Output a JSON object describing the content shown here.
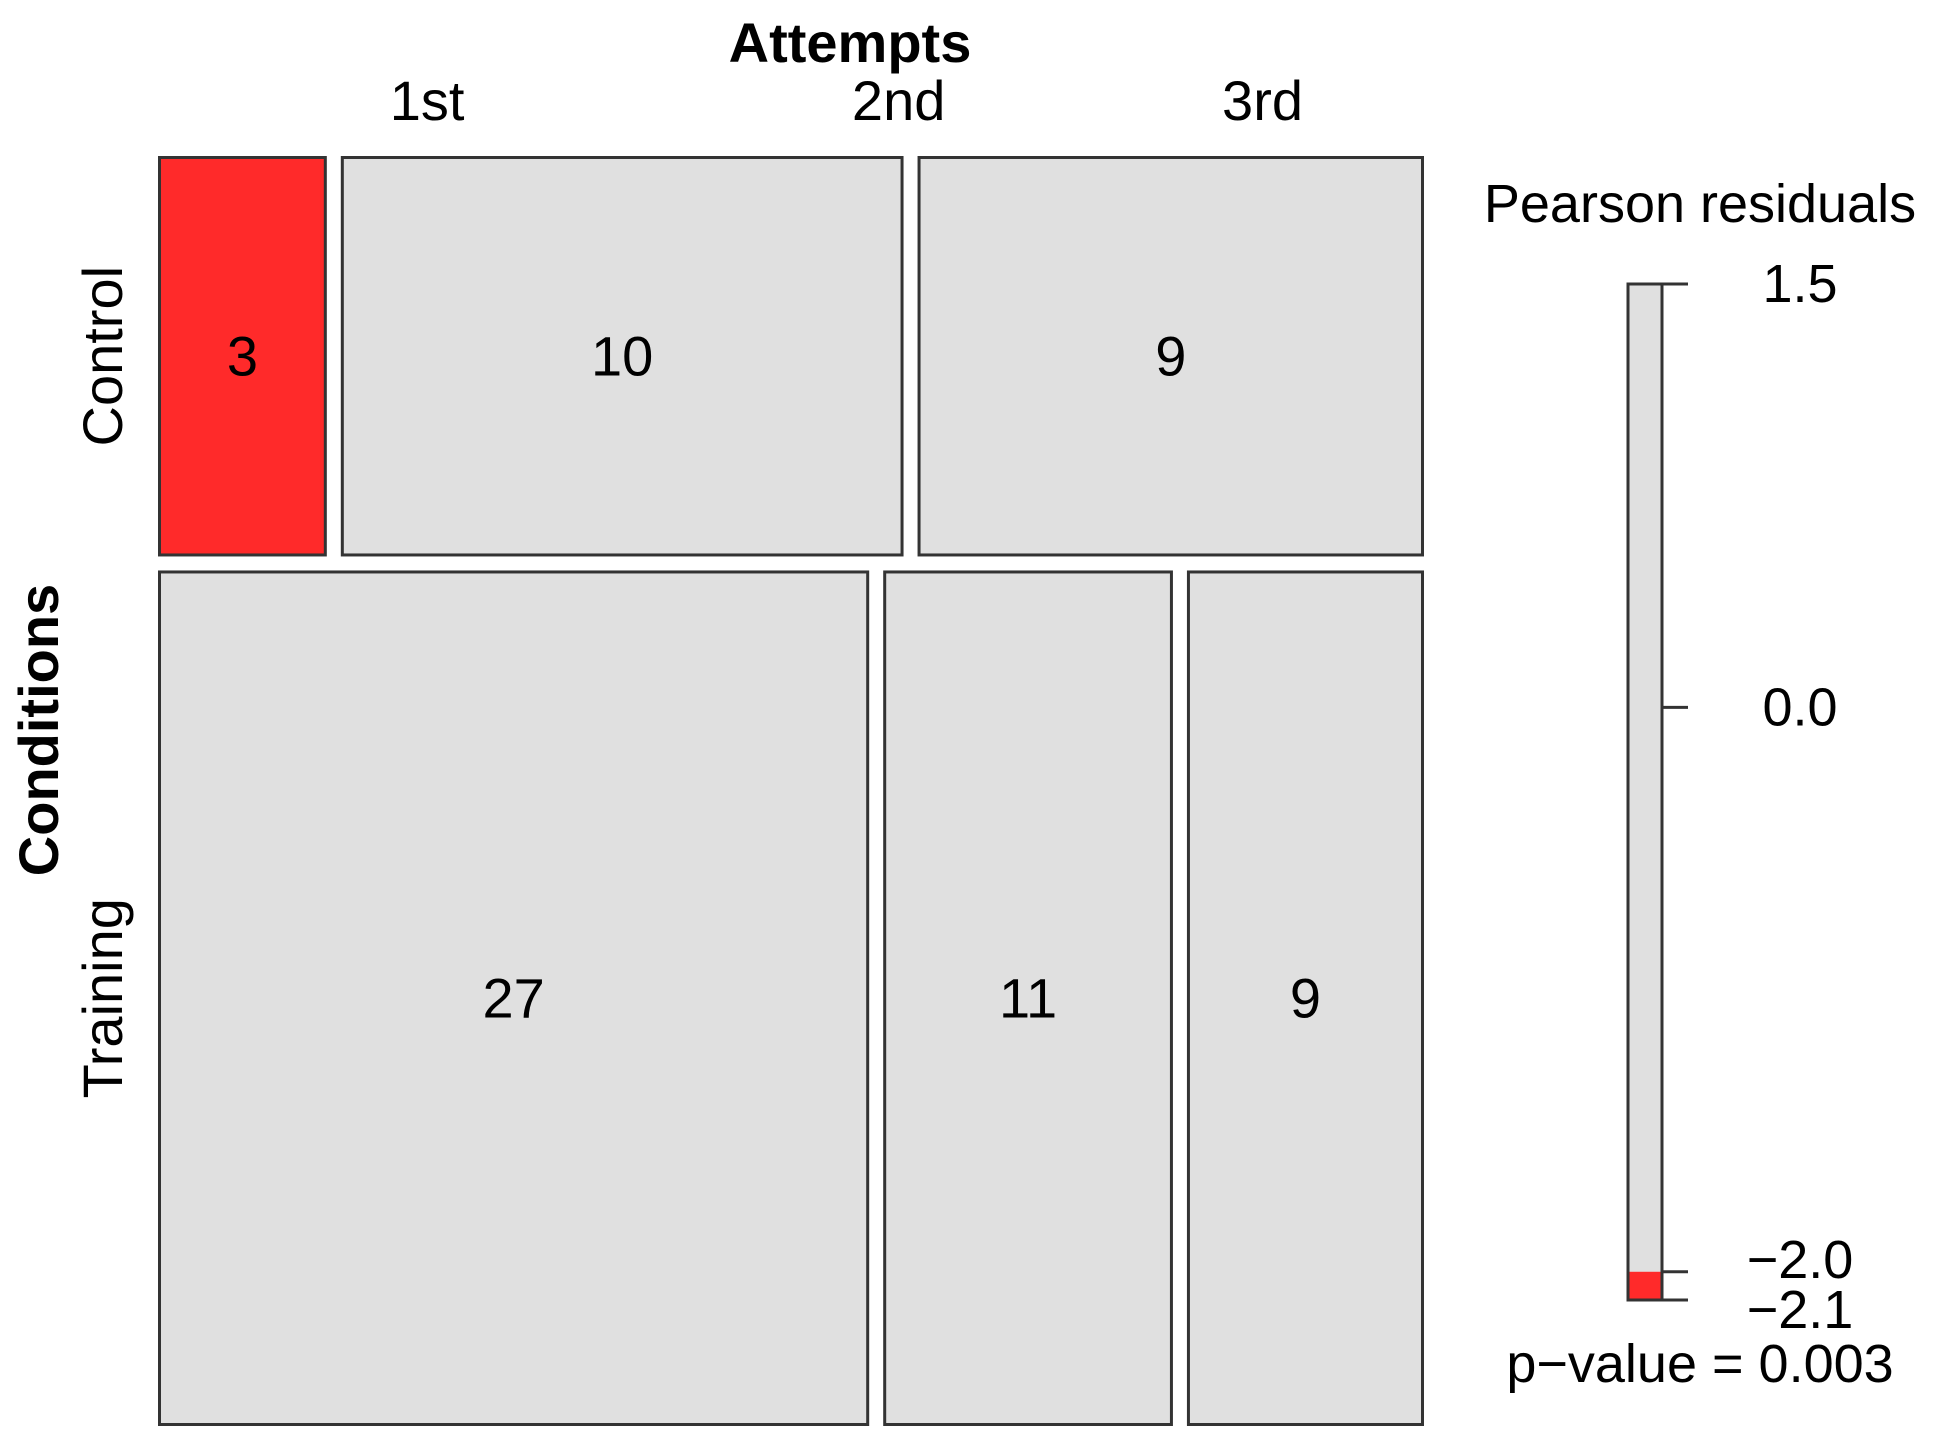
{
  "chart_data": {
    "type": "mosaic",
    "xlabel": "Attempts",
    "ylabel": "Conditions",
    "rows": [
      "Control",
      "Training"
    ],
    "columns": [
      "1st",
      "2nd",
      "3rd"
    ],
    "counts": [
      [
        3,
        10,
        9
      ],
      [
        27,
        11,
        9
      ]
    ],
    "residual_colors": {
      "neutral": "#e0e0e0",
      "negative": "#ff2a2a"
    },
    "highlighted_cells": [
      {
        "row": "Control",
        "column": "1st",
        "color": "negative"
      }
    ],
    "legend": {
      "title": "Pearson residuals",
      "range": [
        -2.1,
        1.5
      ],
      "ticks": [
        {
          "value": 1.5,
          "label": "1.5"
        },
        {
          "value": 0.0,
          "label": "0.0"
        },
        {
          "value": -2.0,
          "label": "−2.0"
        },
        {
          "value": -2.1,
          "label": "−2.1"
        }
      ],
      "negative_band": [
        -2.1,
        -2.0
      ],
      "pvalue_text": "p−value = 0.003"
    }
  }
}
